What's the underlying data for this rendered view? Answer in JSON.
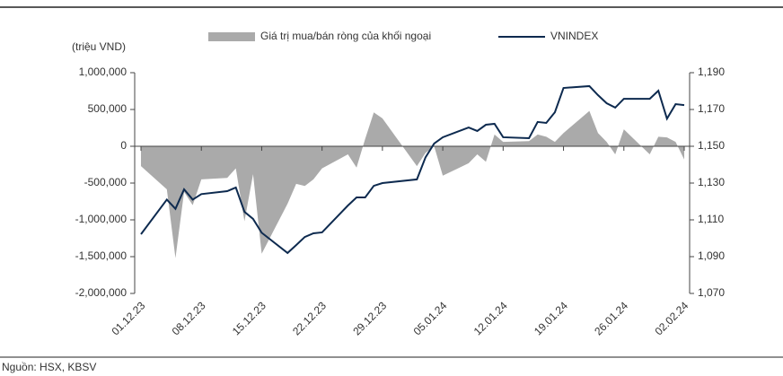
{
  "chart_data": {
    "type": "combo",
    "y_label": "(triệu VND)",
    "source": "Nguồn: HSX, KBSV",
    "x": [
      "01.12.23",
      "04.12.23",
      "05.12.23",
      "06.12.23",
      "07.12.23",
      "08.12.23",
      "11.12.23",
      "12.12.23",
      "13.12.23",
      "14.12.23",
      "15.12.23",
      "18.12.23",
      "19.12.23",
      "20.12.23",
      "21.12.23",
      "22.12.23",
      "25.12.23",
      "26.12.23",
      "27.12.23",
      "28.12.23",
      "29.12.23",
      "02.01.24",
      "03.01.24",
      "04.01.24",
      "05.01.24",
      "08.01.24",
      "09.01.24",
      "10.01.24",
      "11.01.24",
      "12.01.24",
      "15.01.24",
      "16.01.24",
      "17.01.24",
      "18.01.24",
      "19.01.24",
      "22.01.24",
      "23.01.24",
      "24.01.24",
      "25.01.24",
      "26.01.24",
      "29.01.24",
      "30.01.24",
      "31.01.24",
      "01.02.24",
      "02.02.24"
    ],
    "xlim": [
      "01.12.23",
      "02.02.24"
    ],
    "xticks": [
      "01.12.23",
      "08.12.23",
      "15.12.23",
      "22.12.23",
      "29.12.23",
      "05.01.24",
      "12.01.24",
      "19.01.24",
      "26.01.24",
      "02.02.24"
    ],
    "ylim": [
      -2000000,
      1000000
    ],
    "yticks": [
      {
        "value": -2000000,
        "label": "-2,000,000"
      },
      {
        "value": -1500000,
        "label": "-1,500,000"
      },
      {
        "value": -1000000,
        "label": "-1,000,000"
      },
      {
        "value": -500000,
        "label": "-500,000"
      },
      0,
      {
        "value": 500000,
        "label": "500,000"
      },
      {
        "value": 1000000,
        "label": "1,000,000"
      }
    ],
    "y2lim": [
      1070,
      1190
    ],
    "y2ticks": [
      {
        "value": 1070,
        "label": "1,070"
      },
      {
        "value": 1090,
        "label": "1,090"
      },
      {
        "value": 1110,
        "label": "1,110"
      },
      {
        "value": 1130,
        "label": "1,130"
      },
      {
        "value": 1150,
        "label": "1,150"
      },
      {
        "value": 1170,
        "label": "1,170"
      },
      {
        "value": 1190,
        "label": "1,190"
      }
    ],
    "series": [
      {
        "name": "Giá trị mua/bán ròng của khối ngoại",
        "type": "area",
        "color": "#aaaaaa",
        "values": [
          -270000,
          -585000,
          -1520000,
          -620000,
          -800000,
          -450000,
          -430000,
          -300000,
          -1020000,
          -380000,
          -1460000,
          -780000,
          -510000,
          -540000,
          -450000,
          -300000,
          -110000,
          -290000,
          100000,
          460000,
          380000,
          -270000,
          -90000,
          0,
          -400000,
          -230000,
          -110000,
          -210000,
          160000,
          60000,
          70000,
          160000,
          130000,
          60000,
          180000,
          480000,
          180000,
          60000,
          -110000,
          230000,
          -110000,
          130000,
          120000,
          60000,
          -180000
        ]
      },
      {
        "name": "VNINDEX",
        "type": "line",
        "axis": "y2",
        "color": "#0d2a4f",
        "values": [
          1102.2,
          1121,
          1116,
          1126.6,
          1121,
          1124,
          1125.6,
          1127.6,
          1114.4,
          1110.5,
          1103,
          1092,
          1096.3,
          1100.7,
          1102.7,
          1103.2,
          1117.8,
          1122.2,
          1122.2,
          1128.5,
          1130,
          1132,
          1144,
          1151.5,
          1154.9,
          1160.2,
          1158.3,
          1161.7,
          1162.2,
          1154.9,
          1154.4,
          1163.2,
          1162.7,
          1168.5,
          1181.7,
          1182.7,
          1177.8,
          1173.4,
          1171,
          1175.8,
          1175.8,
          1180.2,
          1165,
          1172.9,
          1172.4
        ]
      }
    ]
  }
}
